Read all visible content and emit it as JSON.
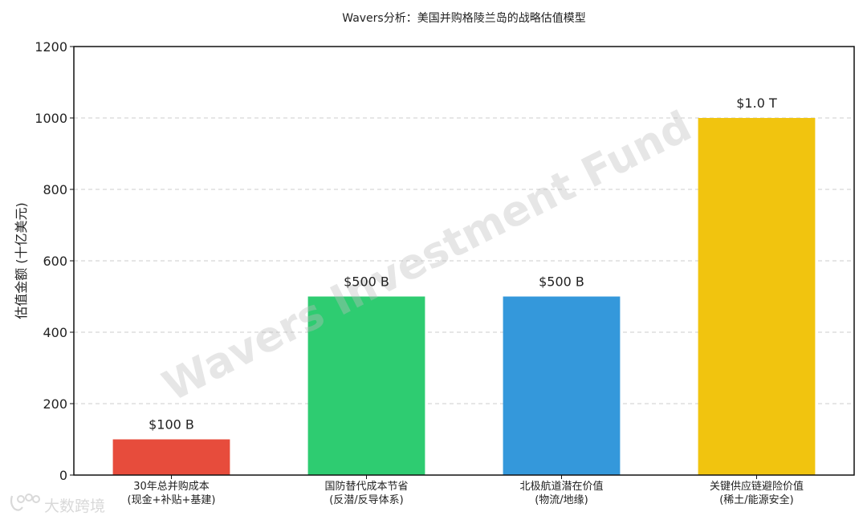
{
  "chart_data": {
    "type": "bar",
    "title": "Wavers分析：美国并购格陵兰岛的战略估值模型",
    "ylabel": "估值金额 (十亿美元)",
    "xlabel": "",
    "ylim": [
      0,
      1200
    ],
    "yticks": [
      0,
      200,
      400,
      600,
      800,
      1000,
      1200
    ],
    "grid": true,
    "categories": [
      [
        "30年总并购成本",
        "(现金+补贴+基建)"
      ],
      [
        "国防替代成本节省",
        "(反潜/反导体系)"
      ],
      [
        "北极航道潜在价值",
        "(物流/地缘)"
      ],
      [
        "关键供应链避险价值",
        "(稀土/能源安全)"
      ]
    ],
    "values": [
      100,
      500,
      500,
      1000
    ],
    "data_labels": [
      "$100 B",
      "$500 B",
      "$500 B",
      "$1.0 T"
    ],
    "colors": [
      "#e74c3c",
      "#2ecc71",
      "#3498db",
      "#f1c40f"
    ]
  },
  "watermark": {
    "text": "Wavers Investment Fund"
  },
  "corner_watermark": {
    "text": "大数跨境"
  }
}
